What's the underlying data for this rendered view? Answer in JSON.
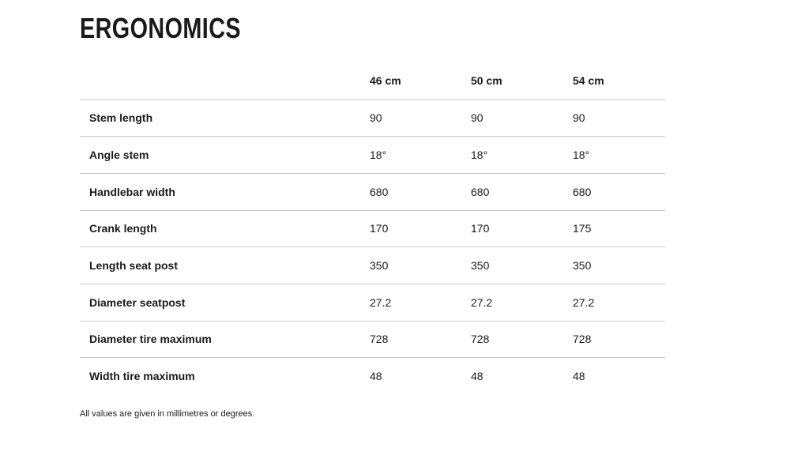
{
  "page": {
    "title": "ERGONOMICS",
    "footnote": "All values are given in millimetres or degrees."
  },
  "table": {
    "columns": [
      "46 cm",
      "50 cm",
      "54 cm"
    ],
    "rows": [
      {
        "label": "Stem length",
        "values": [
          "90",
          "90",
          "90"
        ]
      },
      {
        "label": "Angle stem",
        "values": [
          "18°",
          "18°",
          "18°"
        ]
      },
      {
        "label": "Handlebar width",
        "values": [
          "680",
          "680",
          "680"
        ]
      },
      {
        "label": "Crank length",
        "values": [
          "170",
          "170",
          "175"
        ]
      },
      {
        "label": "Length seat post",
        "values": [
          "350",
          "350",
          "350"
        ]
      },
      {
        "label": "Diameter seatpost",
        "values": [
          "27.2",
          "27.2",
          "27.2"
        ]
      },
      {
        "label": "Diameter tire maximum",
        "values": [
          "728",
          "728",
          "728"
        ]
      },
      {
        "label": "Width tire maximum",
        "values": [
          "48",
          "48",
          "48"
        ]
      }
    ]
  },
  "colors": {
    "text": "#1a1a1a",
    "divider": "#c8c8c8",
    "background": "#ffffff"
  }
}
